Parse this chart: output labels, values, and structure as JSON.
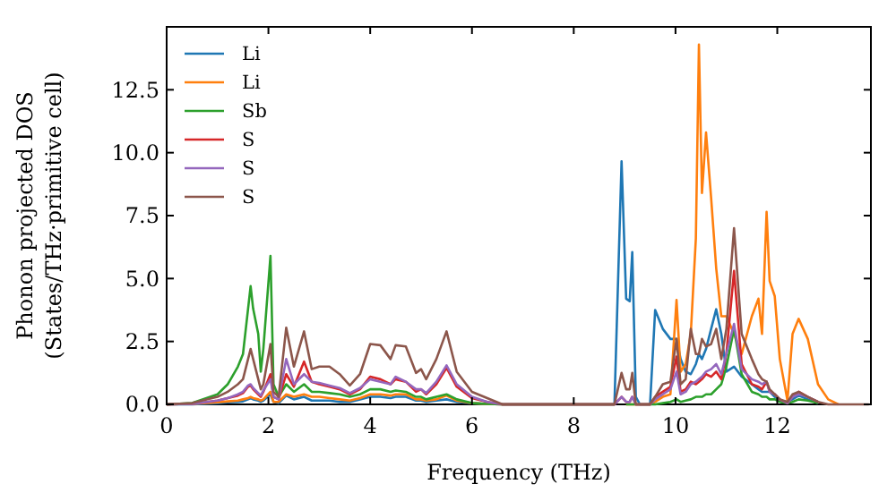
{
  "chart_data": {
    "type": "line",
    "xlabel": "Frequency (THz)",
    "ylabel": "Phonon projected DOS\n(States/THz·primitive cell)",
    "x": [
      0,
      0.5,
      1,
      1.2,
      1.4,
      1.5,
      1.6,
      1.65,
      1.7,
      1.8,
      1.85,
      1.9,
      2.04,
      2.1,
      2.2,
      2.35,
      2.5,
      2.7,
      2.85,
      3.0,
      3.2,
      3.4,
      3.6,
      3.8,
      4.0,
      4.2,
      4.4,
      4.5,
      4.7,
      4.9,
      5.0,
      5.1,
      5.3,
      5.5,
      5.7,
      6.0,
      6.3,
      6.6,
      7,
      8,
      8.8,
      8.94,
      9.03,
      9.1,
      9.15,
      9.22,
      9.3,
      9.5,
      9.6,
      9.75,
      9.9,
      10.02,
      10.1,
      10.2,
      10.3,
      10.4,
      10.46,
      10.52,
      10.6,
      10.7,
      10.8,
      10.9,
      11.0,
      11.15,
      11.3,
      11.5,
      11.63,
      11.7,
      11.79,
      11.85,
      11.95,
      12.05,
      12.2,
      12.3,
      12.42,
      12.6,
      12.8,
      13.0,
      13.2,
      13.8
    ],
    "series": [
      {
        "name": "Li",
        "color": "#1f77b4",
        "values": [
          0,
          0,
          0.05,
          0.08,
          0.1,
          0.12,
          0.2,
          0.25,
          0.2,
          0.15,
          0.1,
          0.15,
          0.4,
          0.1,
          0.05,
          0.35,
          0.2,
          0.3,
          0.15,
          0.15,
          0.15,
          0.1,
          0.1,
          0.2,
          0.3,
          0.3,
          0.25,
          0.3,
          0.3,
          0.15,
          0.15,
          0.1,
          0.15,
          0.2,
          0.1,
          0.05,
          0.02,
          0,
          0,
          0,
          0,
          9.66,
          4.2,
          4.1,
          6.05,
          0.3,
          0,
          0,
          3.75,
          3.0,
          2.6,
          2.6,
          1.8,
          1.3,
          1.2,
          1.6,
          2.0,
          1.8,
          2.2,
          3.0,
          3.78,
          2.8,
          1.3,
          1.5,
          1.1,
          0.8,
          0.6,
          0.5,
          0.5,
          0.5,
          0.3,
          0.15,
          0.1,
          0.2,
          0.35,
          0.2,
          0.05,
          null,
          null,
          null
        ]
      },
      {
        "name": "Li",
        "color": "#ff7f0e",
        "values": [
          0,
          0.02,
          0.08,
          0.12,
          0.15,
          0.2,
          0.25,
          0.3,
          0.25,
          0.2,
          0.15,
          0.2,
          0.5,
          0.1,
          0.1,
          0.4,
          0.3,
          0.4,
          0.3,
          0.3,
          0.25,
          0.2,
          0.15,
          0.25,
          0.4,
          0.4,
          0.35,
          0.4,
          0.4,
          0.2,
          0.2,
          0.15,
          0.2,
          0.35,
          0.15,
          0.05,
          0.02,
          0,
          0,
          0,
          0,
          null,
          0,
          0,
          0,
          0,
          0,
          0,
          0.1,
          0.3,
          0.4,
          4.15,
          1.3,
          1.6,
          2.8,
          6.6,
          14.3,
          8.4,
          10.8,
          8.2,
          5.4,
          3.5,
          3.5,
          2.8,
          2.0,
          3.5,
          4.2,
          2.8,
          7.65,
          4.9,
          4.3,
          1.8,
          0.15,
          2.8,
          3.4,
          2.6,
          0.8,
          0.2,
          0,
          null
        ]
      },
      {
        "name": "Sb",
        "color": "#2ca02c",
        "values": [
          0,
          0.05,
          0.4,
          0.8,
          1.5,
          2.0,
          3.8,
          4.7,
          3.8,
          2.8,
          1.3,
          2.2,
          5.9,
          0.8,
          0.3,
          0.8,
          0.5,
          0.8,
          0.5,
          0.5,
          0.45,
          0.4,
          0.3,
          0.4,
          0.6,
          0.6,
          0.5,
          0.55,
          0.5,
          0.3,
          0.3,
          0.2,
          0.3,
          0.4,
          0.2,
          0.05,
          0.02,
          0,
          0,
          0,
          0,
          null,
          0,
          0,
          0,
          0,
          0,
          0,
          0,
          0.05,
          0.1,
          0.2,
          0.1,
          0.15,
          0.2,
          0.3,
          0.3,
          0.3,
          0.4,
          0.4,
          0.6,
          0.8,
          1.5,
          3.0,
          1.2,
          0.5,
          0.4,
          0.3,
          0.3,
          0.2,
          0.2,
          0.1,
          0.05,
          0.1,
          0.2,
          0.15,
          0.05,
          null,
          null,
          null
        ]
      },
      {
        "name": "S",
        "color": "#d62728",
        "values": [
          0,
          0.02,
          0.15,
          0.25,
          0.35,
          0.45,
          0.7,
          0.75,
          0.6,
          0.4,
          0.3,
          0.5,
          1.2,
          0.3,
          0.2,
          1.2,
          0.7,
          1.7,
          0.9,
          0.8,
          0.7,
          0.6,
          0.4,
          0.6,
          1.1,
          1.0,
          0.8,
          1.0,
          0.9,
          0.5,
          0.6,
          0.4,
          0.8,
          1.45,
          0.7,
          0.25,
          0.1,
          0,
          0,
          0,
          0,
          0.3,
          0.1,
          0.1,
          0.3,
          0,
          0,
          0,
          0.3,
          0.5,
          0.7,
          1.9,
          0.5,
          0.6,
          0.9,
          0.8,
          0.9,
          1.0,
          1.2,
          1.1,
          1.3,
          1.0,
          2.0,
          5.3,
          1.6,
          0.8,
          0.7,
          0.6,
          0.9,
          0.5,
          0.4,
          0.2,
          0.05,
          0.3,
          0.5,
          0.3,
          0.1,
          null,
          null,
          null
        ]
      },
      {
        "name": "S",
        "color": "#9467bd",
        "values": [
          0,
          0.02,
          0.15,
          0.25,
          0.4,
          0.5,
          0.75,
          0.8,
          0.65,
          0.45,
          0.35,
          0.55,
          1.0,
          0.3,
          0.2,
          1.8,
          0.8,
          1.2,
          0.9,
          0.85,
          0.75,
          0.65,
          0.45,
          0.65,
          1.0,
          0.9,
          0.8,
          1.1,
          0.9,
          0.6,
          0.6,
          0.45,
          0.9,
          1.55,
          0.8,
          0.3,
          0.1,
          0,
          0,
          0,
          0,
          0.3,
          0.1,
          0.1,
          0.3,
          0,
          0,
          0,
          0.2,
          0.4,
          0.6,
          1.3,
          0.4,
          0.5,
          0.8,
          0.9,
          1.0,
          1.1,
          1.3,
          1.4,
          1.6,
          1.2,
          2.0,
          3.2,
          1.4,
          1.0,
          0.9,
          0.8,
          0.9,
          0.5,
          0.4,
          0.2,
          0.05,
          0.3,
          0.4,
          0.3,
          0.1,
          null,
          null,
          null
        ]
      },
      {
        "name": "S",
        "color": "#8c564b",
        "values": [
          0,
          0.05,
          0.3,
          0.5,
          0.8,
          1.0,
          1.8,
          2.2,
          1.8,
          1.0,
          0.6,
          0.8,
          2.4,
          0.5,
          0.3,
          3.05,
          1.5,
          2.9,
          1.4,
          1.5,
          1.5,
          1.2,
          0.75,
          1.2,
          2.4,
          2.35,
          1.8,
          2.35,
          2.3,
          1.25,
          1.4,
          1.0,
          1.8,
          2.9,
          1.3,
          0.5,
          0.25,
          0,
          0,
          0,
          0,
          1.25,
          0.6,
          0.6,
          1.25,
          0,
          0,
          0,
          0.3,
          0.8,
          0.9,
          2.6,
          0.8,
          1.0,
          3.0,
          2.0,
          2.0,
          2.6,
          2.3,
          2.4,
          3.0,
          1.8,
          3.0,
          7.0,
          2.8,
          1.8,
          1.2,
          1.0,
          0.9,
          0.6,
          0.4,
          0.2,
          0.1,
          0.4,
          0.5,
          0.3,
          0.1,
          0,
          0,
          0
        ]
      }
    ],
    "xlim": [
      0,
      13.84
    ],
    "xticks": [
      0,
      2,
      4,
      6,
      8,
      10,
      12
    ],
    "ylim": [
      0,
      15
    ],
    "yticks": [
      {
        "value": 0,
        "label": "0.0"
      },
      {
        "value": 2.5,
        "label": "2.5"
      },
      {
        "value": 5,
        "label": "5.0"
      },
      {
        "value": 7.5,
        "label": "7.5"
      },
      {
        "value": 10,
        "label": "10.0"
      },
      {
        "value": 12.5,
        "label": "12.5"
      }
    ],
    "legend": "top left",
    "grid": false,
    "marker": "none",
    "line_style": "solid"
  }
}
